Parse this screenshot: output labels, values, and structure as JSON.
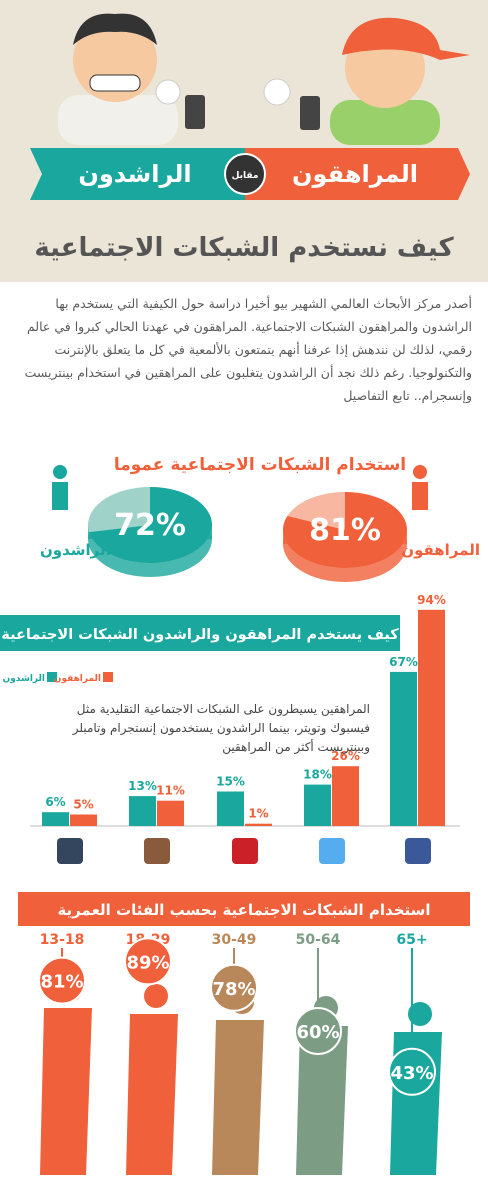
{
  "header": {
    "left_label": "المراهقون",
    "versus": "مقابل",
    "right_label": "الراشدون",
    "title": "كيف نستخدم الشبكات الاجتماعية"
  },
  "intro": "أصدر مركز الأبحاث العالمي الشهير بيو أخيرا دراسة حول الكيفية التي يستخدم بها الراشدون والمراهقون الشبكات الاجتماعية. المراهقون في عهدنا الحالي كبروا في عالم رقمي، لذلك لن نندهش إذا عرفنا أنهم يتمتعون بالألمعية في كل ما يتعلق بالإنترنت والتكنولوجيا. رغم ذلك نجد أن الراشدون يتغلبون على المراهقين في استخدام بينتريست وإنسجرام.. تابع التفاصيل",
  "chart_data": [
    {
      "type": "pie",
      "title": "استخدام الشبكات الاجتماعية عموما",
      "series": [
        {
          "name": "الراشدون",
          "color": "#1aa79d",
          "values": [
            72
          ],
          "value_labels": [
            "72%"
          ]
        },
        {
          "name": "المراهقون",
          "color": "#f0603a",
          "values": [
            81
          ],
          "value_labels": [
            "81%"
          ]
        }
      ]
    },
    {
      "type": "bar",
      "title": "كيف يستخدم المراهقون والراشدون الشبكات الاجتماعية",
      "annotation": "المراهقين يسيطرون على الشبكات الاجتماعية التقليدية مثل فيسبوك وتويتر، بينما الراشدون يستخدمون إنستجرام وتامبلر وبينتريست أكثر من المراهقين",
      "categories": [
        null,
        null,
        null,
        null,
        null
      ],
      "series": [
        {
          "name": "الراشدون",
          "color": "#1aa79d",
          "values": [
            6,
            13,
            15,
            18,
            67
          ],
          "value_labels": [
            "6%",
            "13%",
            "15%",
            "18%",
            "67%"
          ]
        },
        {
          "name": "المراهقون",
          "color": "#f0603a",
          "values": [
            5,
            11,
            1,
            26,
            94
          ],
          "value_labels": [
            "5%",
            "11%",
            "1%",
            "26%",
            "94%"
          ]
        }
      ]
    },
    {
      "type": "age",
      "title": "استخدام الشبكات الاجتماعية بحسب الفئات العمرية",
      "categories": [
        "13-18",
        "18-29",
        "30-49",
        "50-64",
        "65+"
      ],
      "values": [
        81,
        89,
        78,
        60,
        43
      ],
      "value_labels": [
        "81%",
        "89%",
        "78%",
        "60%",
        "43%"
      ],
      "colors": [
        "#f0603a",
        "#f0603a",
        "#b8875a",
        "#7c9c84",
        "#1aa79d"
      ]
    }
  ]
}
